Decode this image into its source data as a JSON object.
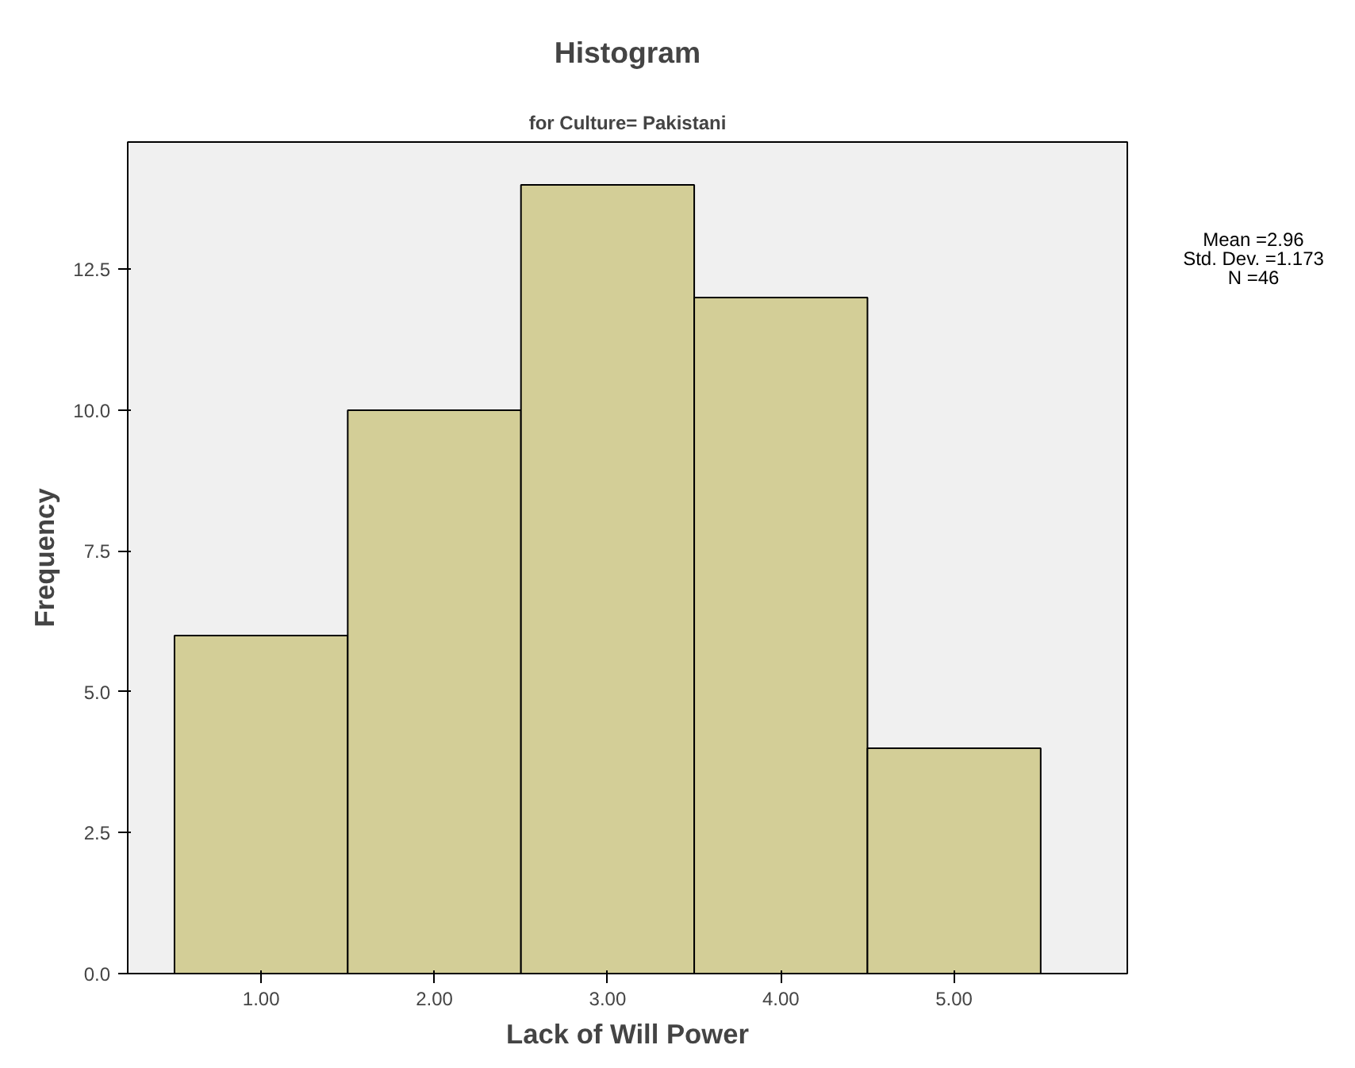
{
  "chart_data": {
    "type": "histogram",
    "title": "Histogram",
    "subtitle": "for Culture= Pakistani",
    "xlabel": "Lack of Will Power",
    "ylabel": "Frequency",
    "bins": [
      0.5,
      1.5,
      2.5,
      3.5,
      4.5,
      5.5
    ],
    "values": [
      6,
      10,
      14,
      12,
      4
    ],
    "color": "#d3ce97",
    "xlim": [
      0.23,
      6.0
    ],
    "ylim": [
      0,
      14.76
    ],
    "xticks": [
      {
        "value": 1,
        "label": "1.00"
      },
      {
        "value": 2,
        "label": "2.00"
      },
      {
        "value": 3,
        "label": "3.00"
      },
      {
        "value": 4,
        "label": "4.00"
      },
      {
        "value": 5,
        "label": "5.00"
      }
    ],
    "yticks": [
      {
        "value": 0,
        "label": "0.0"
      },
      {
        "value": 2.5,
        "label": "2.5"
      },
      {
        "value": 5,
        "label": "5.0"
      },
      {
        "value": 7.5,
        "label": "7.5"
      },
      {
        "value": 10,
        "label": "10.0"
      },
      {
        "value": 12.5,
        "label": "12.5"
      }
    ],
    "grid": false,
    "annotations": [
      "Mean =2.96",
      "Std. Dev. =1.173",
      "N =46"
    ]
  }
}
